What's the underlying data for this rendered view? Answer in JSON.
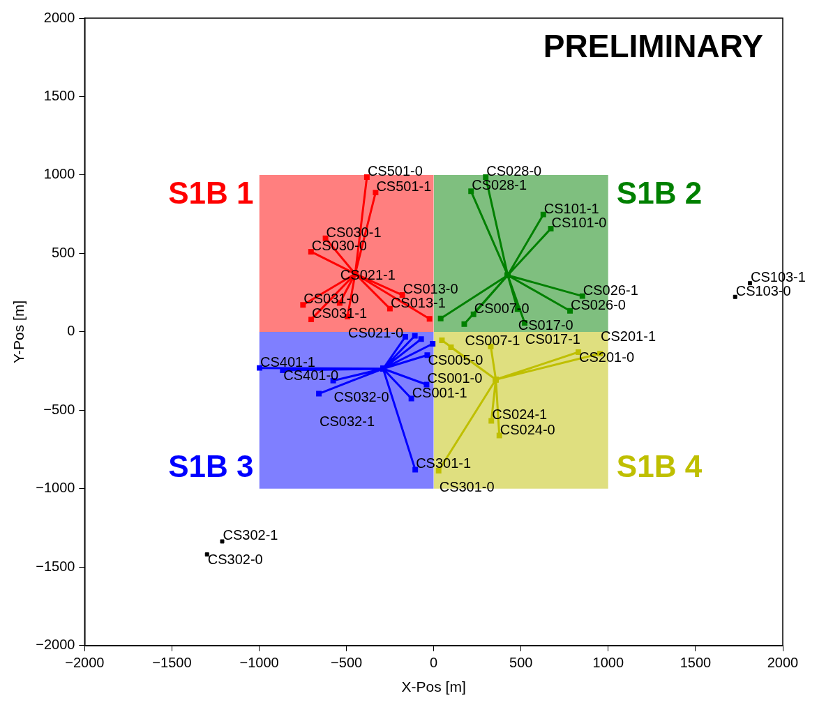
{
  "chart_data": {
    "type": "line",
    "xlabel": "X-Pos [m]",
    "ylabel": "Y-Pos [m]",
    "xlim": [
      -2000,
      2000
    ],
    "ylim": [
      -2000,
      2000
    ],
    "xticks": [
      {
        "value": -2000,
        "label": "−2000"
      },
      {
        "value": -1500,
        "label": "−1500"
      },
      {
        "value": -1000,
        "label": "−1000"
      },
      {
        "value": -500,
        "label": "−500"
      },
      0,
      500,
      1000,
      1500,
      2000
    ],
    "yticks": [
      {
        "value": -2000,
        "label": "−2000"
      },
      {
        "value": -1500,
        "label": "−1500"
      },
      {
        "value": -1000,
        "label": "−1000"
      },
      {
        "value": -500,
        "label": "−500"
      },
      0,
      500,
      1000,
      1500,
      2000
    ],
    "grid": false,
    "legend": false,
    "marker": "square",
    "line_style": "solid",
    "series": [
      {
        "type": "area",
        "marker": "none",
        "name": "S1B 1",
        "color": "#ff0000",
        "x": [
          -1000,
          0
        ],
        "values": [
          1000,
          1000
        ]
      },
      {
        "type": "area",
        "marker": "none",
        "name": "S1B 2",
        "color": "#008000",
        "x": [
          0,
          1000
        ],
        "values": [
          1000,
          1000
        ]
      },
      {
        "type": "area",
        "marker": "none",
        "name": "S1B 3",
        "color": "#0000ff",
        "x": [
          -1000,
          0
        ],
        "values": [
          -1000,
          -1000
        ]
      },
      {
        "type": "area",
        "marker": "none",
        "name": "S1B 4",
        "color": "#bfbf00",
        "x": [
          0,
          1000
        ],
        "values": [
          -1000,
          -1000
        ]
      },
      {
        "color": "#ff0000",
        "x": [
          -450,
          -383,
          -450,
          -333,
          -450,
          -620,
          -450,
          -703,
          -450,
          -749,
          -450,
          -702,
          -450,
          -539,
          -450,
          -494,
          -450,
          -180,
          -450,
          -251,
          -450,
          -24
        ],
        "values": [
          370,
          986,
          370,
          888,
          370,
          596,
          370,
          511,
          370,
          172,
          370,
          79,
          370,
          184,
          370,
          97,
          370,
          235,
          370,
          148,
          370,
          83
        ]
      },
      {
        "color": "#008000",
        "x": [
          424,
          298,
          424,
          214,
          424,
          628,
          424,
          671,
          424,
          852,
          424,
          781,
          424,
          480,
          424,
          521,
          424,
          40,
          424,
          228,
          424,
          175
        ],
        "values": [
          361,
          986,
          361,
          896,
          361,
          748,
          361,
          658,
          361,
          228,
          361,
          134,
          361,
          145,
          361,
          57,
          361,
          85,
          361,
          112,
          361,
          50
        ]
      },
      {
        "color": "#0000ff",
        "x": [
          -290,
          -998,
          -290,
          -865,
          -290,
          -576,
          -290,
          -658,
          -290,
          -41,
          -290,
          -128,
          -290,
          -106,
          -290,
          -163,
          -290,
          -108,
          -290,
          -72,
          -290,
          -37,
          -290,
          -6
        ],
        "values": [
          -235,
          -230,
          -235,
          -245,
          -235,
          -311,
          -235,
          -394,
          -235,
          -336,
          -235,
          -425,
          -235,
          -878,
          -235,
          -32,
          -235,
          -25,
          -235,
          -46,
          -235,
          -148,
          -235,
          -76
        ]
      },
      {
        "color": "#bfbf00",
        "x": [
          356,
          829,
          356,
          953,
          356,
          330,
          356,
          376,
          356,
          28,
          356,
          327,
          356,
          99,
          356,
          47
        ],
        "values": [
          -304,
          -129,
          -304,
          -138,
          -304,
          -567,
          -304,
          -661,
          -304,
          -885,
          -304,
          -93,
          -304,
          -98,
          -304,
          -54
        ]
      },
      {
        "type": "scatter",
        "color": "#000000",
        "x": [
          -1299,
          -1212,
          1727,
          1812
        ],
        "values": [
          -1419,
          -1336,
          223,
          310
        ]
      }
    ],
    "annotations": [
      "PRELIMINARY",
      {
        "text": "CS501-0",
        "x": -383,
        "y": 986
      },
      {
        "text": "CS501-1",
        "x": -333,
        "y": 888
      },
      {
        "text": "CS030-1",
        "x": -620,
        "y": 596
      },
      {
        "text": "CS030-0",
        "x": -703,
        "y": 511
      },
      {
        "text": "CS031-0",
        "x": -749,
        "y": 172
      },
      {
        "text": "CS031-1",
        "x": -702,
        "y": 79
      },
      {
        "text": "CS021-1",
        "x": -539,
        "y": 184
      },
      {
        "text": "CS021-0",
        "x": -494,
        "y": 97
      },
      {
        "text": "CS013-0",
        "x": -180,
        "y": 235
      },
      {
        "text": "CS013-1",
        "x": -251,
        "y": 148
      },
      {
        "text": "CS028-0",
        "x": 298,
        "y": 986
      },
      {
        "text": "CS028-1",
        "x": 214,
        "y": 896
      },
      {
        "text": "CS101-1",
        "x": 628,
        "y": 748
      },
      {
        "text": "CS101-0",
        "x": 671,
        "y": 658
      },
      {
        "text": "CS026-1",
        "x": 852,
        "y": 228
      },
      {
        "text": "CS026-0",
        "x": 781,
        "y": 134
      },
      {
        "text": "CS017-0",
        "x": 480,
        "y": 145
      },
      {
        "text": "CS017-1",
        "x": 521,
        "y": 57
      },
      {
        "text": "CS007-0",
        "x": 228,
        "y": 112
      },
      {
        "text": "CS007-1",
        "x": 175,
        "y": 50
      },
      {
        "text": "CS401-1",
        "x": -998,
        "y": -230
      },
      {
        "text": "CS401-0",
        "x": -865,
        "y": -245
      },
      {
        "text": "CS032-0",
        "x": -576,
        "y": -311
      },
      {
        "text": "CS032-1",
        "x": -658,
        "y": -394
      },
      {
        "text": "CS001-0",
        "x": -41,
        "y": -336
      },
      {
        "text": "CS001-1",
        "x": -128,
        "y": -425
      },
      {
        "text": "CS301-1",
        "x": -106,
        "y": -878
      },
      {
        "text": "CS005-0",
        "x": -37,
        "y": -148
      },
      {
        "text": "CS201-0",
        "x": 829,
        "y": -129
      },
      {
        "text": "CS201-1",
        "x": 953,
        "y": -138
      },
      {
        "text": "CS024-1",
        "x": 330,
        "y": -567
      },
      {
        "text": "CS024-0",
        "x": 376,
        "y": -661
      },
      {
        "text": "CS301-0",
        "x": 28,
        "y": -885
      },
      {
        "text": "CS302-1",
        "x": -1212,
        "y": -1336
      },
      {
        "text": "CS302-0",
        "x": -1299,
        "y": -1419
      },
      {
        "text": "CS103-1",
        "x": 1812,
        "y": 310
      },
      {
        "text": "CS103-0",
        "x": 1727,
        "y": 223
      }
    ]
  }
}
